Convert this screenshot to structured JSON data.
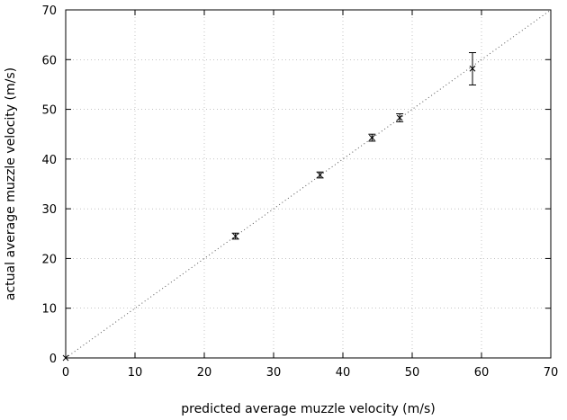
{
  "chart_data": {
    "type": "scatter",
    "xlabel": "predicted average muzzle velocity (m/s)",
    "ylabel": "actual average muzzle velocity (m/s)",
    "xlim": [
      0,
      70
    ],
    "ylim": [
      0,
      70
    ],
    "xticks": [
      0,
      10,
      20,
      30,
      40,
      50,
      60,
      70
    ],
    "yticks": [
      0,
      10,
      20,
      30,
      40,
      50,
      60,
      70
    ],
    "grid": true,
    "reference_line": {
      "x": [
        0,
        70
      ],
      "y": [
        0,
        70
      ],
      "style": "dotted"
    },
    "points": [
      {
        "x": 0.0,
        "y": 0.0,
        "yerr_low": 0.0,
        "yerr_high": 0.0
      },
      {
        "x": 24.5,
        "y": 24.5,
        "yerr_low": 23.9,
        "yerr_high": 25.1
      },
      {
        "x": 36.7,
        "y": 36.8,
        "yerr_low": 36.2,
        "yerr_high": 37.4
      },
      {
        "x": 44.2,
        "y": 44.3,
        "yerr_low": 43.6,
        "yerr_high": 45.0
      },
      {
        "x": 48.2,
        "y": 48.3,
        "yerr_low": 47.5,
        "yerr_high": 49.1
      },
      {
        "x": 58.7,
        "y": 58.2,
        "yerr_low": 54.9,
        "yerr_high": 61.4
      }
    ]
  }
}
